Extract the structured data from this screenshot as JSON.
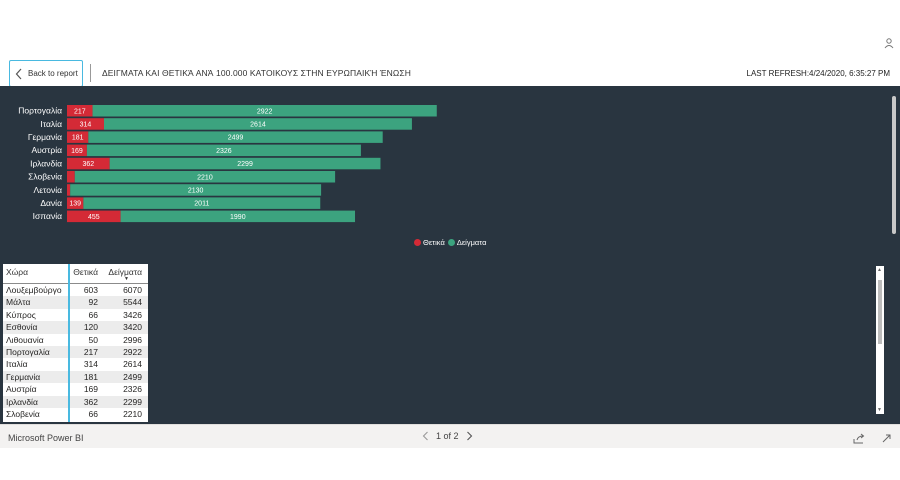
{
  "header": {
    "back_label": "Back to report",
    "title": "ΔΕΙΓΜΑΤΑ ΚΑΙ ΘΕΤΙΚΆ ΑΝΆ 100.000 ΚΑΤΟΙΚΟΥΣ ΣΤΗΝ ΕΥΡΩΠΑΙΚΉ ΈΝΩΣΗ",
    "refresh": "LAST REFRESH:4/24/2020, 6:35:27 PM"
  },
  "chart_data": {
    "type": "bar",
    "orientation": "horizontal",
    "stacked": true,
    "categories": [
      "Πορτογαλία",
      "Ιταλία",
      "Γερμανία",
      "Αυστρία",
      "Ιρλανδία",
      "Σλοβενία",
      "Λετονία",
      "Δανία",
      "Ισπανία"
    ],
    "series": [
      {
        "name": "Θετικά",
        "color": "#d42a36",
        "values": [
          217,
          314,
          181,
          169,
          362,
          66,
          27,
          139,
          455
        ],
        "labels": [
          "217",
          "314",
          "181",
          "169",
          "362",
          "",
          "",
          "139",
          "455"
        ]
      },
      {
        "name": "Δείγματα",
        "color": "#3ca37f",
        "values": [
          2922,
          2614,
          2499,
          2326,
          2299,
          2210,
          2130,
          2011,
          1990
        ],
        "labels": [
          "2922",
          "2614",
          "2499",
          "2326",
          "2299",
          "2210",
          "2130",
          "2011",
          "1990"
        ]
      }
    ],
    "legend_position": "bottom-center",
    "grid": false
  },
  "legend": {
    "items": [
      {
        "label": "Θετικά",
        "color": "#d42a36"
      },
      {
        "label": "Δείγματα",
        "color": "#3ca37f"
      }
    ]
  },
  "table": {
    "headers": [
      "Χώρα",
      "Θετικά",
      "Δείγματα"
    ],
    "rows": [
      [
        "Λουξεμβούργο",
        "603",
        "6070"
      ],
      [
        "Μάλτα",
        "92",
        "5544"
      ],
      [
        "Κύπρος",
        "66",
        "3426"
      ],
      [
        "Εσθονία",
        "120",
        "3420"
      ],
      [
        "Λιθουανία",
        "50",
        "2996"
      ],
      [
        "Πορτογαλία",
        "217",
        "2922"
      ],
      [
        "Ιταλία",
        "314",
        "2614"
      ],
      [
        "Γερμανία",
        "181",
        "2499"
      ],
      [
        "Αυστρία",
        "169",
        "2326"
      ],
      [
        "Ιρλανδία",
        "362",
        "2299"
      ],
      [
        "Σλοβενία",
        "66",
        "2210"
      ]
    ]
  },
  "footer": {
    "brand": "Microsoft Power BI",
    "page": "1 of 2"
  }
}
